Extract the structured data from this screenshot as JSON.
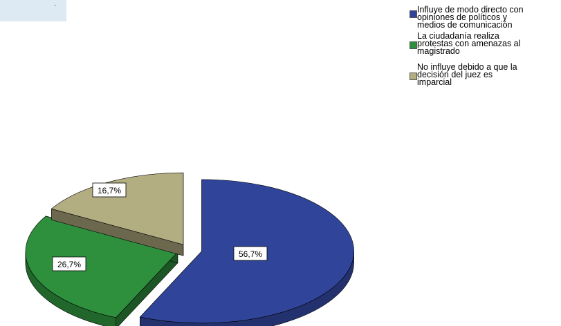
{
  "chart_data": {
    "type": "pie",
    "title": "·",
    "legend_position": "top-right",
    "slices": [
      {
        "label": "Influye de modo directo con opiniones de políticos y medios de comunicación",
        "value": 56.7,
        "display": "56,7%",
        "color": "#30459a"
      },
      {
        "label": "La ciudadanía realiza protestas con amenazas al magistrado",
        "value": 26.7,
        "display": "26,7%",
        "color": "#2e8f3d"
      },
      {
        "label": "No influye debido a que la decisión del juez es imparcial",
        "value": 16.7,
        "display": "16,7%",
        "color": "#b3ad82"
      }
    ],
    "legend": [
      "Influye de modo directo con\nopiniones de políticos y\nmedios de comunicación",
      "La ciudadanía realiza\nprotestas con amenazas al\nmagistrado",
      "No influye debido a que la\ndecisión del juez es\nimparcial"
    ]
  }
}
